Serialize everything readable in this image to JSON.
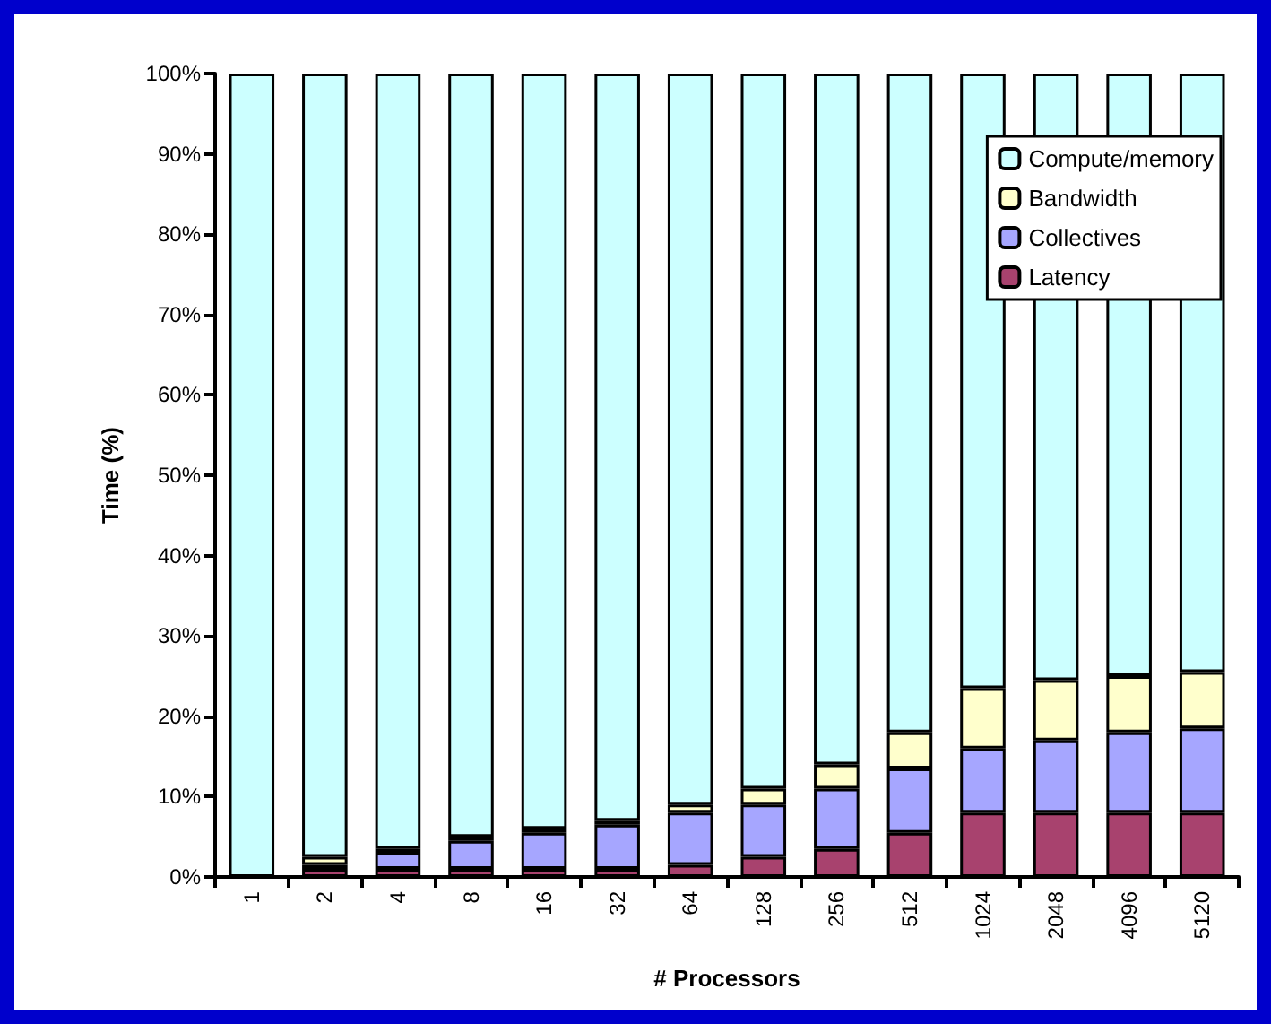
{
  "chart_data": {
    "type": "bar",
    "stacked": true,
    "xlabel": "# Processors",
    "ylabel": "Time (%)",
    "categories": [
      "1",
      "2",
      "4",
      "8",
      "16",
      "32",
      "64",
      "128",
      "256",
      "512",
      "1024",
      "2048",
      "4096",
      "5120"
    ],
    "series": [
      {
        "name": "Latency",
        "color": "#a8426e",
        "values": [
          0,
          1,
          1,
          1,
          1,
          1,
          1.5,
          2.5,
          3.5,
          5.5,
          8,
          8,
          8,
          8
        ]
      },
      {
        "name": "Collectives",
        "color": "#a6a6ff",
        "values": [
          0,
          0.5,
          2,
          3.5,
          4.5,
          5.5,
          6.5,
          6.5,
          7.5,
          8,
          8,
          9,
          10,
          10.5
        ]
      },
      {
        "name": "Bandwidth",
        "color": "#ffffcc",
        "values": [
          0,
          1,
          0.5,
          0.5,
          0.5,
          0.5,
          1,
          2,
          3,
          4.5,
          7.5,
          7.5,
          7,
          7
        ]
      },
      {
        "name": "Compute/memory",
        "color": "#ccffff",
        "values": [
          100,
          97.5,
          96.5,
          95,
          94,
          93,
          91,
          89,
          86,
          82,
          76.5,
          75.5,
          75,
          74.5
        ]
      }
    ],
    "ylim": [
      0,
      100
    ],
    "yticks": [
      {
        "value": 0,
        "label": "0%"
      },
      {
        "value": 10,
        "label": "10%"
      },
      {
        "value": 20,
        "label": "20%"
      },
      {
        "value": 30,
        "label": "30%"
      },
      {
        "value": 40,
        "label": "40%"
      },
      {
        "value": 50,
        "label": "50%"
      },
      {
        "value": 60,
        "label": "60%"
      },
      {
        "value": 70,
        "label": "70%"
      },
      {
        "value": 80,
        "label": "80%"
      },
      {
        "value": 90,
        "label": "90%"
      },
      {
        "value": 100,
        "label": "100%"
      }
    ],
    "grid": false,
    "legend": "top right"
  }
}
